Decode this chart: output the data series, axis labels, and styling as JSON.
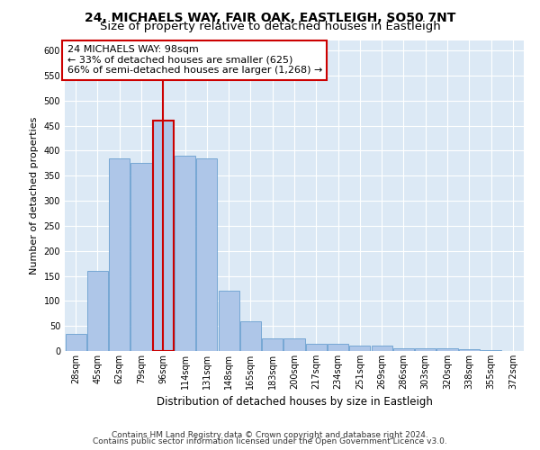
{
  "title": "24, MICHAELS WAY, FAIR OAK, EASTLEIGH, SO50 7NT",
  "subtitle": "Size of property relative to detached houses in Eastleigh",
  "xlabel": "Distribution of detached houses by size in Eastleigh",
  "ylabel": "Number of detached properties",
  "categories": [
    "28sqm",
    "45sqm",
    "62sqm",
    "79sqm",
    "96sqm",
    "114sqm",
    "131sqm",
    "148sqm",
    "165sqm",
    "183sqm",
    "200sqm",
    "217sqm",
    "234sqm",
    "251sqm",
    "269sqm",
    "286sqm",
    "303sqm",
    "320sqm",
    "338sqm",
    "355sqm",
    "372sqm"
  ],
  "values": [
    35,
    160,
    385,
    375,
    460,
    390,
    385,
    120,
    60,
    25,
    25,
    15,
    15,
    10,
    10,
    5,
    5,
    5,
    3,
    2,
    0
  ],
  "bar_color": "#aec6e8",
  "bar_edge_color": "#6a9fd0",
  "highlight_bar_index": 4,
  "highlight_bar_edge_color": "#cc0000",
  "vline_color": "#cc0000",
  "annotation_text": "24 MICHAELS WAY: 98sqm\n← 33% of detached houses are smaller (625)\n66% of semi-detached houses are larger (1,268) →",
  "annotation_box_color": "#ffffff",
  "annotation_box_edge_color": "#cc0000",
  "ylim": [
    0,
    620
  ],
  "yticks": [
    0,
    50,
    100,
    150,
    200,
    250,
    300,
    350,
    400,
    450,
    500,
    550,
    600
  ],
  "plot_bg_color": "#dce9f5",
  "footer_line1": "Contains HM Land Registry data © Crown copyright and database right 2024.",
  "footer_line2": "Contains public sector information licensed under the Open Government Licence v3.0.",
  "title_fontsize": 10,
  "subtitle_fontsize": 9.5,
  "xlabel_fontsize": 8.5,
  "ylabel_fontsize": 8,
  "tick_fontsize": 7,
  "annotation_fontsize": 8,
  "footer_fontsize": 6.5
}
